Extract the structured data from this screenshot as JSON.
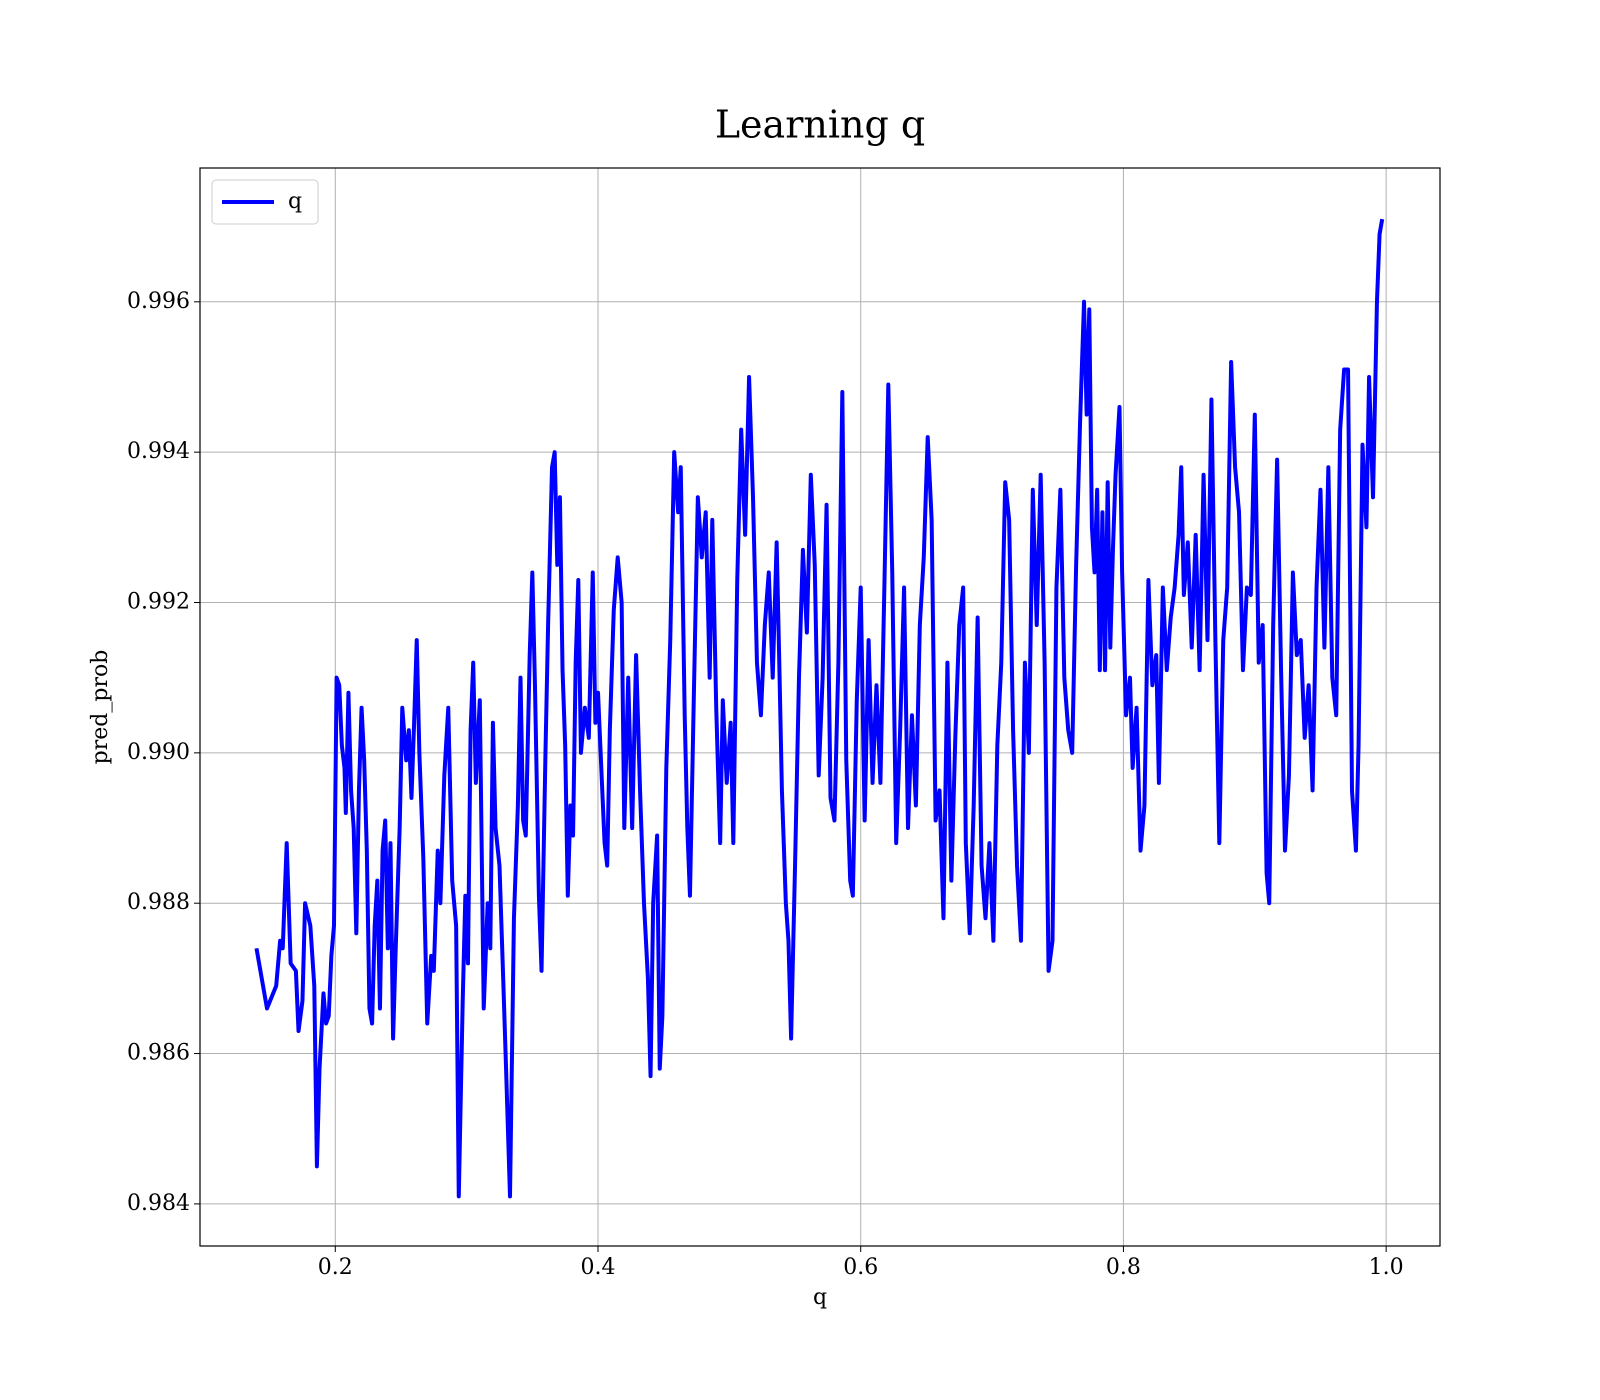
{
  "chart_data": {
    "type": "line",
    "title": "Learning q",
    "xlabel": "q",
    "ylabel": "pred_prob",
    "x": [
      0.14,
      0.148,
      0.155,
      0.158,
      0.16,
      0.163,
      0.166,
      0.17,
      0.172,
      0.175,
      0.177,
      0.181,
      0.184,
      0.186,
      0.188,
      0.191,
      0.193,
      0.195,
      0.197,
      0.199,
      0.201,
      0.203,
      0.205,
      0.207,
      0.208,
      0.21,
      0.212,
      0.214,
      0.216,
      0.218,
      0.22,
      0.222,
      0.224,
      0.226,
      0.228,
      0.23,
      0.232,
      0.234,
      0.236,
      0.238,
      0.24,
      0.242,
      0.244,
      0.246,
      0.249,
      0.251,
      0.254,
      0.256,
      0.258,
      0.26,
      0.262,
      0.264,
      0.267,
      0.27,
      0.273,
      0.275,
      0.278,
      0.28,
      0.283,
      0.286,
      0.289,
      0.292,
      0.294,
      0.297,
      0.299,
      0.301,
      0.303,
      0.305,
      0.307,
      0.31,
      0.313,
      0.316,
      0.318,
      0.32,
      0.322,
      0.325,
      0.328,
      0.33,
      0.333,
      0.336,
      0.339,
      0.341,
      0.343,
      0.345,
      0.348,
      0.35,
      0.352,
      0.355,
      0.357,
      0.36,
      0.362,
      0.365,
      0.367,
      0.369,
      0.371,
      0.373,
      0.375,
      0.377,
      0.379,
      0.381,
      0.383,
      0.385,
      0.387,
      0.39,
      0.393,
      0.396,
      0.398,
      0.4,
      0.403,
      0.405,
      0.407,
      0.409,
      0.412,
      0.415,
      0.418,
      0.42,
      0.423,
      0.426,
      0.429,
      0.432,
      0.435,
      0.438,
      0.44,
      0.442,
      0.445,
      0.447,
      0.449,
      0.452,
      0.455,
      0.458,
      0.461,
      0.463,
      0.466,
      0.468,
      0.47,
      0.473,
      0.476,
      0.479,
      0.482,
      0.485,
      0.487,
      0.49,
      0.493,
      0.495,
      0.498,
      0.501,
      0.503,
      0.506,
      0.509,
      0.512,
      0.515,
      0.518,
      0.521,
      0.524,
      0.527,
      0.53,
      0.533,
      0.536,
      0.538,
      0.54,
      0.543,
      0.545,
      0.547,
      0.55,
      0.553,
      0.556,
      0.559,
      0.562,
      0.565,
      0.568,
      0.571,
      0.574,
      0.577,
      0.58,
      0.583,
      0.586,
      0.589,
      0.592,
      0.594,
      0.597,
      0.6,
      0.603,
      0.606,
      0.609,
      0.612,
      0.615,
      0.618,
      0.621,
      0.624,
      0.627,
      0.63,
      0.633,
      0.636,
      0.639,
      0.642,
      0.645,
      0.648,
      0.651,
      0.654,
      0.657,
      0.66,
      0.663,
      0.666,
      0.669,
      0.672,
      0.675,
      0.678,
      0.68,
      0.683,
      0.686,
      0.689,
      0.692,
      0.695,
      0.698,
      0.701,
      0.704,
      0.707,
      0.71,
      0.713,
      0.716,
      0.719,
      0.722,
      0.725,
      0.728,
      0.731,
      0.734,
      0.737,
      0.74,
      0.743,
      0.746,
      0.749,
      0.752,
      0.755,
      0.758,
      0.761,
      0.764,
      0.767,
      0.77,
      0.772,
      0.774,
      0.776,
      0.778,
      0.78,
      0.782,
      0.784,
      0.786,
      0.788,
      0.79,
      0.792,
      0.794,
      0.797,
      0.799,
      0.802,
      0.805,
      0.807,
      0.81,
      0.813,
      0.816,
      0.819,
      0.822,
      0.825,
      0.827,
      0.83,
      0.833,
      0.836,
      0.839,
      0.842,
      0.844,
      0.846,
      0.849,
      0.852,
      0.855,
      0.858,
      0.861,
      0.864,
      0.867,
      0.87,
      0.873,
      0.876,
      0.879,
      0.882,
      0.885,
      0.888,
      0.891,
      0.894,
      0.897,
      0.9,
      0.903,
      0.906,
      0.909,
      0.911,
      0.914,
      0.917,
      0.92,
      0.923,
      0.926,
      0.929,
      0.932,
      0.935,
      0.938,
      0.941,
      0.944,
      0.947,
      0.95,
      0.953,
      0.956,
      0.959,
      0.962,
      0.965,
      0.968,
      0.971,
      0.974,
      0.977,
      0.979,
      0.982,
      0.985,
      0.987,
      0.99,
      0.993,
      0.995,
      0.997
    ],
    "series": [
      {
        "name": "q",
        "color": "#0000ff",
        "values": [
          0.9874,
          0.9866,
          0.9869,
          0.9875,
          0.9874,
          0.9888,
          0.9872,
          0.9871,
          0.9863,
          0.9867,
          0.988,
          0.9877,
          0.9869,
          0.9845,
          0.9858,
          0.9868,
          0.9864,
          0.9865,
          0.9873,
          0.9877,
          0.991,
          0.9909,
          0.9901,
          0.9898,
          0.9892,
          0.9908,
          0.9895,
          0.989,
          0.9876,
          0.9895,
          0.9906,
          0.9899,
          0.9887,
          0.9866,
          0.9864,
          0.9877,
          0.9883,
          0.9866,
          0.9887,
          0.9891,
          0.9874,
          0.9888,
          0.9862,
          0.9874,
          0.989,
          0.9906,
          0.9899,
          0.9903,
          0.9894,
          0.9904,
          0.9915,
          0.99,
          0.9886,
          0.9864,
          0.9873,
          0.9871,
          0.9887,
          0.988,
          0.9897,
          0.9906,
          0.9883,
          0.9877,
          0.9841,
          0.9867,
          0.9881,
          0.9872,
          0.9903,
          0.9912,
          0.9896,
          0.9907,
          0.9866,
          0.988,
          0.9874,
          0.9904,
          0.989,
          0.9885,
          0.9869,
          0.9858,
          0.9841,
          0.9878,
          0.9893,
          0.991,
          0.9891,
          0.9889,
          0.9913,
          0.9924,
          0.9909,
          0.9881,
          0.9871,
          0.99,
          0.9917,
          0.9938,
          0.994,
          0.9925,
          0.9934,
          0.9911,
          0.9901,
          0.9881,
          0.9893,
          0.9889,
          0.9912,
          0.9923,
          0.99,
          0.9906,
          0.9902,
          0.9924,
          0.9904,
          0.9908,
          0.9896,
          0.9888,
          0.9885,
          0.9903,
          0.9919,
          0.9926,
          0.992,
          0.989,
          0.991,
          0.989,
          0.9913,
          0.9895,
          0.988,
          0.987,
          0.9857,
          0.988,
          0.9889,
          0.9858,
          0.9865,
          0.9898,
          0.9915,
          0.994,
          0.9932,
          0.9938,
          0.9905,
          0.989,
          0.9881,
          0.9908,
          0.9934,
          0.9926,
          0.9932,
          0.991,
          0.9931,
          0.9906,
          0.9888,
          0.9907,
          0.9896,
          0.9904,
          0.9888,
          0.9923,
          0.9943,
          0.9929,
          0.995,
          0.9934,
          0.9912,
          0.9905,
          0.9917,
          0.9924,
          0.991,
          0.9928,
          0.9912,
          0.9895,
          0.988,
          0.9875,
          0.9862,
          0.9885,
          0.991,
          0.9927,
          0.9916,
          0.9937,
          0.9925,
          0.9897,
          0.991,
          0.9933,
          0.9894,
          0.9891,
          0.9912,
          0.9948,
          0.9899,
          0.9883,
          0.9881,
          0.9907,
          0.9922,
          0.9891,
          0.9915,
          0.9896,
          0.9909,
          0.9896,
          0.9922,
          0.9949,
          0.9924,
          0.9888,
          0.9903,
          0.9922,
          0.989,
          0.9905,
          0.9893,
          0.9917,
          0.9926,
          0.9942,
          0.9931,
          0.9891,
          0.9895,
          0.9878,
          0.9912,
          0.9883,
          0.9902,
          0.9917,
          0.9922,
          0.9888,
          0.9876,
          0.9893,
          0.9918,
          0.9885,
          0.9878,
          0.9888,
          0.9875,
          0.9901,
          0.9912,
          0.9936,
          0.9931,
          0.9903,
          0.9885,
          0.9875,
          0.9912,
          0.99,
          0.9935,
          0.9917,
          0.9937,
          0.9912,
          0.9871,
          0.9875,
          0.9922,
          0.9935,
          0.991,
          0.9903,
          0.99,
          0.9925,
          0.9944,
          0.996,
          0.9945,
          0.9959,
          0.993,
          0.9924,
          0.9935,
          0.9911,
          0.9932,
          0.9911,
          0.9936,
          0.9914,
          0.9927,
          0.9937,
          0.9946,
          0.9924,
          0.9905,
          0.991,
          0.9898,
          0.9906,
          0.9887,
          0.9893,
          0.9923,
          0.9909,
          0.9913,
          0.9896,
          0.9922,
          0.9911,
          0.9918,
          0.9922,
          0.9929,
          0.9938,
          0.9921,
          0.9928,
          0.9914,
          0.9929,
          0.9911,
          0.9937,
          0.9915,
          0.9947,
          0.9915,
          0.9888,
          0.9915,
          0.9922,
          0.9952,
          0.9938,
          0.9932,
          0.9911,
          0.9922,
          0.9921,
          0.9945,
          0.9912,
          0.9917,
          0.9884,
          0.988,
          0.9917,
          0.9939,
          0.9911,
          0.9887,
          0.9897,
          0.9924,
          0.9913,
          0.9915,
          0.9902,
          0.9909,
          0.9895,
          0.9922,
          0.9935,
          0.9914,
          0.9938,
          0.991,
          0.9905,
          0.9943,
          0.9951,
          0.9951,
          0.9895,
          0.9887,
          0.9901,
          0.9941,
          0.993,
          0.995,
          0.9934,
          0.996,
          0.9969,
          0.9971
        ]
      }
    ],
    "xlim": [
      0.097,
      1.041
    ],
    "ylim": [
      0.98344,
      0.99778
    ],
    "xticks": [
      0.2,
      0.4,
      0.6,
      0.8,
      {
        "value": 1,
        "label": "1.0"
      }
    ],
    "yticks": [
      0.984,
      0.986,
      0.988,
      {
        "value": 0.99,
        "label": "0.990"
      },
      0.992,
      0.994,
      0.996
    ],
    "grid": true,
    "legend": "upper-left"
  }
}
